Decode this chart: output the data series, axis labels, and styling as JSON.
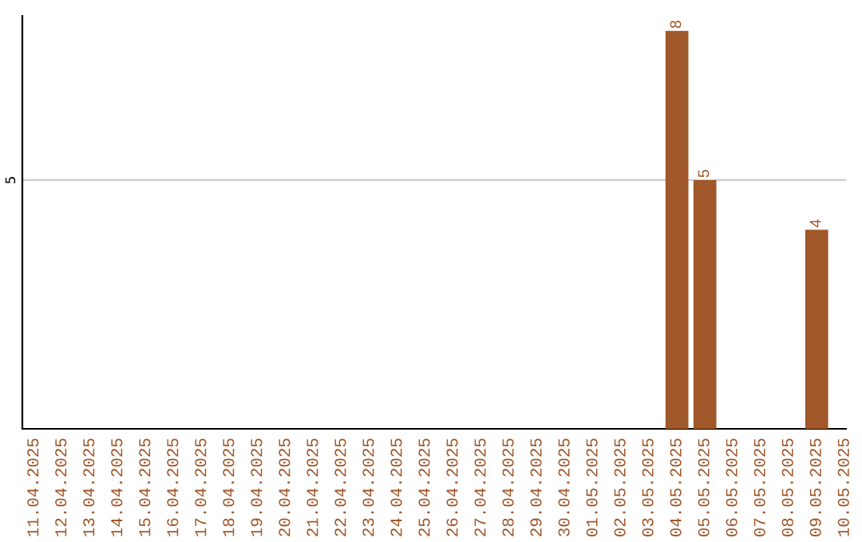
{
  "chart_data": {
    "type": "bar",
    "categories": [
      "11.04.2025",
      "12.04.2025",
      "13.04.2025",
      "14.04.2025",
      "15.04.2025",
      "16.04.2025",
      "17.04.2025",
      "18.04.2025",
      "19.04.2025",
      "20.04.2025",
      "21.04.2025",
      "22.04.2025",
      "23.04.2025",
      "24.04.2025",
      "25.04.2025",
      "26.04.2025",
      "27.04.2025",
      "28.04.2025",
      "29.04.2025",
      "30.04.2025",
      "01.05.2025",
      "02.05.2025",
      "03.05.2025",
      "04.05.2025",
      "05.05.2025",
      "06.05.2025",
      "07.05.2025",
      "08.05.2025",
      "09.05.2025",
      "10.05.2025"
    ],
    "values": [
      null,
      null,
      null,
      null,
      null,
      null,
      null,
      null,
      null,
      null,
      null,
      null,
      null,
      null,
      null,
      null,
      null,
      null,
      null,
      null,
      null,
      null,
      null,
      8,
      5,
      null,
      null,
      null,
      4,
      null
    ],
    "color": "#a0572a",
    "ylim": [
      0,
      8.3
    ],
    "yticks": [
      5
    ],
    "grid": "y",
    "data_labels": true
  }
}
